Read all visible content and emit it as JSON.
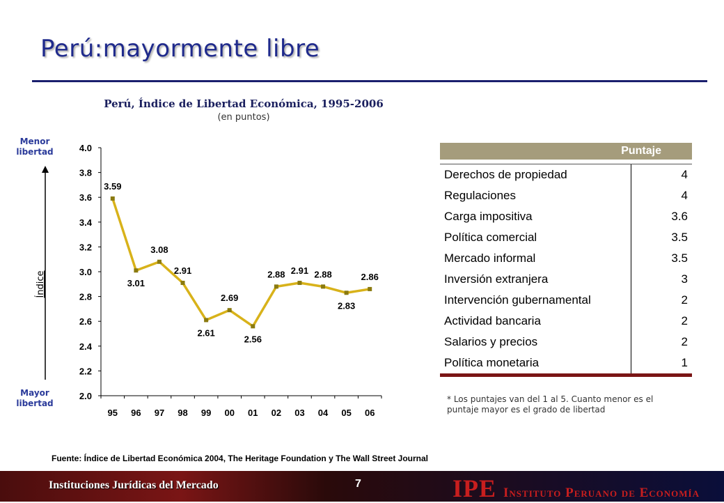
{
  "slide": {
    "title": "Perú:mayormente libre"
  },
  "chart_data": {
    "type": "line",
    "title": "Perú, Índice de Libertad Económica, 1995-2006",
    "subtitle": "(en puntos)",
    "ylabel": "Índice",
    "top_label": "Menor libertad",
    "bottom_label": "Mayor libertad",
    "categories": [
      "95",
      "96",
      "97",
      "98",
      "99",
      "00",
      "01",
      "02",
      "03",
      "04",
      "05",
      "06"
    ],
    "values": [
      3.59,
      3.01,
      3.08,
      2.91,
      2.61,
      2.69,
      2.56,
      2.88,
      2.91,
      2.88,
      2.83,
      2.86
    ],
    "data_labels": [
      "3.59",
      "3.01",
      "3.08",
      "2.91",
      "2.61",
      "2.69",
      "2.56",
      "2.88",
      "2.91",
      "2.88",
      "2.83",
      "2.86"
    ],
    "ylim": [
      2.0,
      4.0
    ],
    "yticks": [
      "2.0",
      "2.2",
      "2.4",
      "2.6",
      "2.8",
      "3.0",
      "3.2",
      "3.4",
      "3.6",
      "3.8",
      "4.0"
    ],
    "line_color": "#d8b21a",
    "marker_color": "#8a7a10",
    "grid": false
  },
  "table": {
    "header": "Puntaje",
    "rows": [
      {
        "label": "Derechos de propiedad",
        "value": "4"
      },
      {
        "label": "Regulaciones",
        "value": "4"
      },
      {
        "label": "Carga impositiva",
        "value": "3.6"
      },
      {
        "label": "Política comercial",
        "value": "3.5"
      },
      {
        "label": "Mercado informal",
        "value": "3.5"
      },
      {
        "label": "Inversión extranjera",
        "value": "3"
      },
      {
        "label": "Intervención gubernamental",
        "value": "2"
      },
      {
        "label": "Actividad bancaria",
        "value": "2"
      },
      {
        "label": "Salarios y precios",
        "value": "2"
      },
      {
        "label": "Política monetaria",
        "value": "1"
      }
    ]
  },
  "note": "* Los puntajes van del 1 al 5. Cuanto menor es el puntaje mayor es el grado de libertad",
  "source": "Fuente: Índice de Libertad Económica 2004, The Heritage Foundation y The Wall Street Journal",
  "footer": {
    "left_text": "Instituciones Jurídicas del Mercado",
    "page_number": "7",
    "logo_mark": "IPE",
    "logo_text": "Instituto Peruano de Economía"
  }
}
